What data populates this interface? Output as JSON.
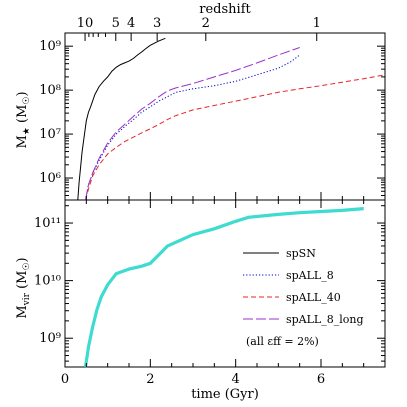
{
  "chart_data": [
    {
      "type": "line",
      "panel": "top",
      "ylabel": "M★ (M⊙)",
      "xlabel": "",
      "top_axis_label": "redshift",
      "top_ticks": [
        {
          "label": "10",
          "z": 10,
          "t": 0.47
        },
        {
          "label": "5",
          "z": 5,
          "t": 1.19
        },
        {
          "label": "4",
          "z": 4,
          "t": 1.55
        },
        {
          "label": "3",
          "z": 3,
          "t": 2.16
        },
        {
          "label": "2",
          "z": 2,
          "t": 3.3
        },
        {
          "label": "1",
          "z": 1,
          "t": 5.9
        }
      ],
      "xlim": [
        0,
        7.5
      ],
      "ylim_log10": [
        5.5,
        9.3
      ],
      "yscale": "log",
      "y_ticks": [
        {
          "label": "10⁶",
          "log": 6
        },
        {
          "label": "10⁷",
          "log": 7
        },
        {
          "label": "10⁸",
          "log": 8
        },
        {
          "label": "10⁹",
          "log": 9
        }
      ],
      "series": [
        {
          "name": "spSN",
          "color": "#000000",
          "dash": "solid",
          "x": [
            0.3,
            0.33,
            0.36,
            0.4,
            0.45,
            0.5,
            0.55,
            0.6,
            0.7,
            0.8,
            0.9,
            1.0,
            1.1,
            1.2,
            1.3,
            1.4,
            1.5,
            1.6,
            1.7,
            1.8,
            1.9,
            2.0,
            2.1,
            2.2,
            2.35
          ],
          "y_log10": [
            5.5,
            5.9,
            6.2,
            6.6,
            6.95,
            7.3,
            7.5,
            7.62,
            7.9,
            8.08,
            8.2,
            8.3,
            8.43,
            8.52,
            8.58,
            8.62,
            8.66,
            8.72,
            8.8,
            8.87,
            8.95,
            9.02,
            9.07,
            9.12,
            9.18
          ]
        },
        {
          "name": "spALL_8",
          "color": "#0000cc",
          "dash": "dotted",
          "x": [
            0.48,
            0.55,
            0.65,
            0.8,
            1.0,
            1.2,
            1.4,
            1.6,
            1.8,
            2.0,
            2.2,
            2.4,
            2.6,
            3.0,
            3.5,
            4.0,
            4.5,
            5.0,
            5.3,
            5.5
          ],
          "y_log10": [
            5.5,
            5.85,
            6.1,
            6.4,
            6.75,
            7.0,
            7.17,
            7.33,
            7.5,
            7.62,
            7.75,
            7.85,
            7.95,
            8.03,
            8.1,
            8.2,
            8.35,
            8.5,
            8.65,
            8.8
          ]
        },
        {
          "name": "spALL_40",
          "color": "#e8252b",
          "dash": "dashed",
          "x": [
            0.48,
            0.55,
            0.65,
            0.8,
            1.0,
            1.2,
            1.4,
            1.6,
            1.8,
            2.0,
            2.2,
            2.4,
            2.6,
            3.0,
            3.5,
            4.0,
            4.5,
            5.0,
            5.5,
            6.0,
            6.5,
            7.0,
            7.5
          ],
          "y_log10": [
            5.5,
            5.75,
            6.05,
            6.3,
            6.55,
            6.7,
            6.83,
            6.93,
            7.03,
            7.12,
            7.22,
            7.33,
            7.42,
            7.55,
            7.65,
            7.75,
            7.85,
            7.95,
            8.03,
            8.1,
            8.18,
            8.26,
            8.35
          ]
        },
        {
          "name": "spALL_8_long",
          "color": "#9933cc",
          "dash": "longdash",
          "x": [
            0.48,
            0.55,
            0.65,
            0.8,
            1.0,
            1.2,
            1.4,
            1.6,
            1.8,
            2.0,
            2.2,
            2.4,
            2.6,
            3.0,
            3.5,
            4.0,
            4.5,
            5.0,
            5.5
          ],
          "y_log10": [
            5.5,
            5.85,
            6.12,
            6.45,
            6.8,
            7.05,
            7.22,
            7.4,
            7.57,
            7.7,
            7.85,
            7.98,
            8.05,
            8.15,
            8.3,
            8.45,
            8.62,
            8.8,
            8.97
          ]
        }
      ]
    },
    {
      "type": "line",
      "panel": "bottom",
      "xlabel": "time (Gyr)",
      "ylabel": "Mvir (M⊙)",
      "xlim": [
        0,
        7.5
      ],
      "ylim_log10": [
        8.5,
        11.4
      ],
      "yscale": "log",
      "x_ticks": [
        {
          "label": "0",
          "t": 0
        },
        {
          "label": "2",
          "t": 2
        },
        {
          "label": "4",
          "t": 4
        },
        {
          "label": "6",
          "t": 6
        }
      ],
      "y_ticks": [
        {
          "label": "10⁹",
          "log": 9
        },
        {
          "label": "10¹⁰",
          "log": 10
        },
        {
          "label": "10¹¹",
          "log": 11
        }
      ],
      "series": [
        {
          "name": "",
          "color": "#3ddbd0",
          "dash": "solid",
          "x": [
            0.48,
            0.55,
            0.65,
            0.75,
            0.85,
            1.0,
            1.2,
            1.5,
            1.8,
            2.0,
            2.2,
            2.4,
            2.7,
            3.0,
            3.5,
            4.0,
            4.3,
            5.0,
            5.5,
            6.0,
            6.5,
            7.0
          ],
          "y_log10": [
            8.5,
            8.85,
            9.2,
            9.5,
            9.72,
            9.93,
            10.12,
            10.2,
            10.25,
            10.3,
            10.45,
            10.6,
            10.7,
            10.8,
            10.9,
            11.03,
            11.1,
            11.15,
            11.18,
            11.2,
            11.22,
            11.25
          ]
        }
      ]
    }
  ],
  "legend": {
    "entries": [
      {
        "label": "spSN",
        "color": "#000000",
        "dash": "solid"
      },
      {
        "label": "spALL_8",
        "color": "#0000cc",
        "dash": "dotted"
      },
      {
        "label": "spALL_40",
        "color": "#e8252b",
        "dash": "dashed"
      },
      {
        "label": "spALL_8_long",
        "color": "#9933cc",
        "dash": "longdash"
      }
    ],
    "note": "(all εff = 2%)",
    "placement": "bottom-right of lower panel"
  }
}
